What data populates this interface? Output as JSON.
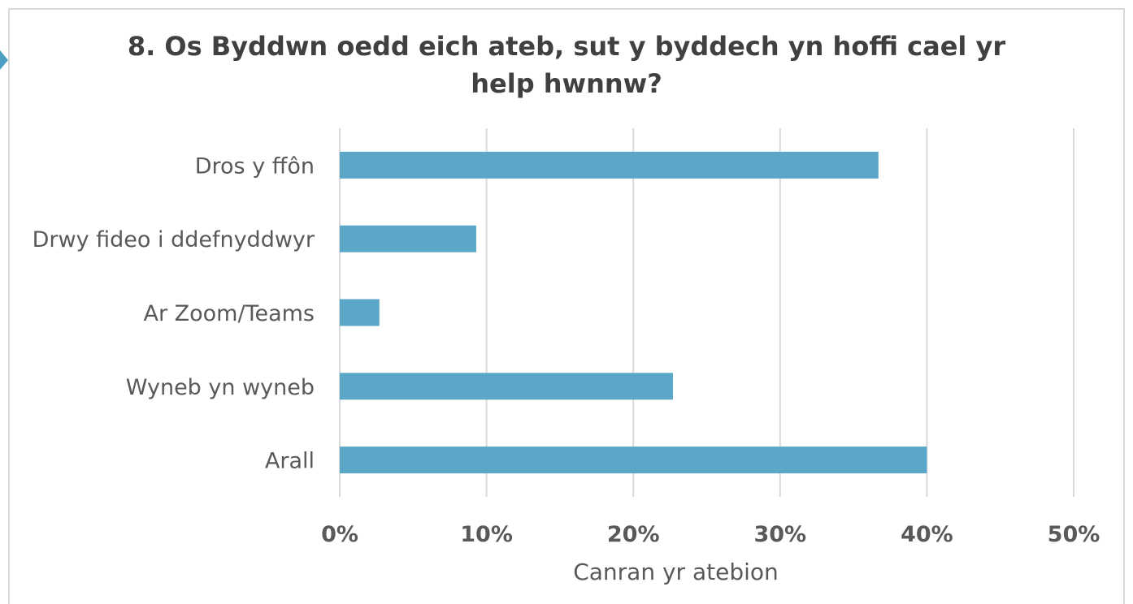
{
  "chart_data": {
    "type": "bar",
    "orientation": "horizontal",
    "title_lines": [
      "8. Os Byddwn oedd eich ateb, sut y byddech yn hoffi cael yr",
      "help hwnnw?"
    ],
    "categories": [
      "Dros y ffôn",
      "Drwy fideo i ddefnyddwyr",
      "Ar Zoom/Teams",
      "Wyneb yn wyneb",
      "Arall"
    ],
    "values": [
      36.7,
      9.3,
      2.7,
      22.7,
      40.0
    ],
    "xlabel": "Canran yr atebion",
    "ylabel": "",
    "xlim": [
      0,
      50
    ],
    "ticks": [
      0,
      10,
      20,
      30,
      40,
      50
    ],
    "tick_labels": [
      "0%",
      "10%",
      "20%",
      "30%",
      "40%",
      "50%"
    ],
    "grid": true,
    "legend": false,
    "bar_color": "#5ba7c7",
    "grid_color": "#d9d9d9"
  }
}
